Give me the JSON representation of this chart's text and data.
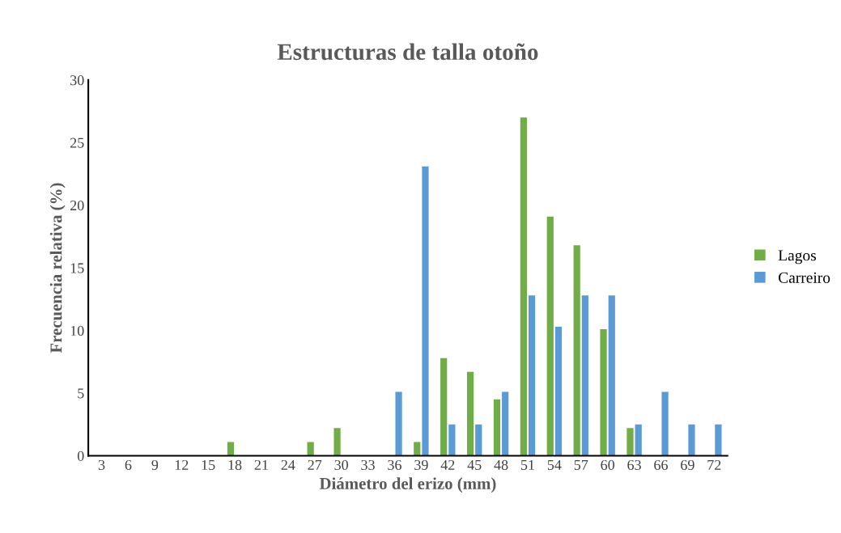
{
  "chart_data": {
    "type": "bar",
    "title": "Estructuras de talla otoño",
    "xlabel": "Diámetro del erizo (mm)",
    "ylabel": "Frecuencia relativa (%)",
    "categories": [
      "3",
      "6",
      "9",
      "12",
      "15",
      "18",
      "21",
      "24",
      "27",
      "30",
      "33",
      "36",
      "39",
      "42",
      "45",
      "48",
      "51",
      "54",
      "57",
      "60",
      "63",
      "66",
      "69",
      "72"
    ],
    "series": [
      {
        "name": "Lagos",
        "color": "#70ad47",
        "values": [
          0,
          0,
          0,
          0,
          0,
          1.1,
          0,
          0,
          1.1,
          2.2,
          0,
          0,
          1.1,
          7.8,
          6.7,
          4.5,
          27.0,
          19.1,
          16.8,
          10.1,
          2.2,
          0,
          0,
          0
        ]
      },
      {
        "name": "Carreiro",
        "color": "#5b9bd5",
        "values": [
          0,
          0,
          0,
          0,
          0,
          0,
          0,
          0,
          0,
          0,
          0,
          5.1,
          23.1,
          2.5,
          2.5,
          5.1,
          12.8,
          10.3,
          12.8,
          12.8,
          2.5,
          5.1,
          2.5,
          2.5
        ]
      }
    ],
    "ylim": [
      0,
      30
    ],
    "yticks": [
      0,
      5,
      10,
      15,
      20,
      25,
      30
    ],
    "grid": false,
    "legend": "right"
  }
}
